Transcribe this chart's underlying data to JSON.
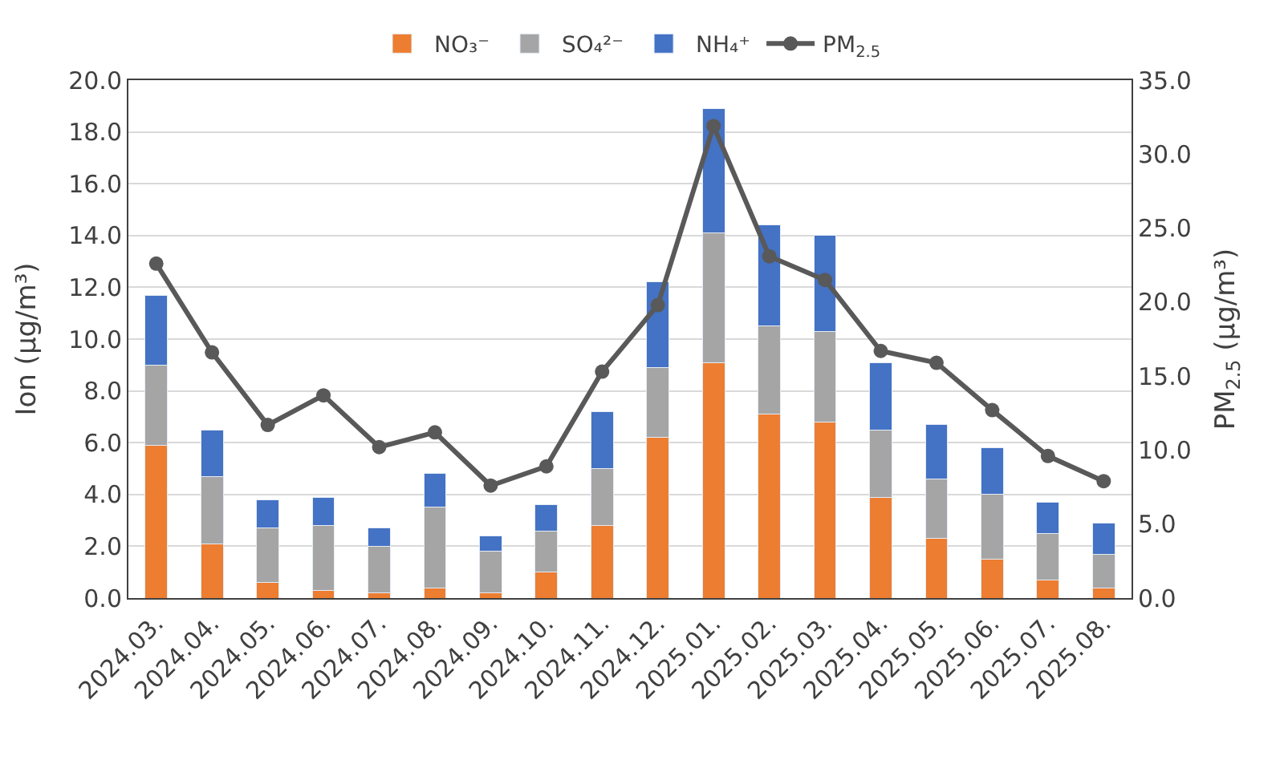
{
  "chart_data": {
    "type": "bar",
    "stacked": true,
    "xlabel": null,
    "ylabel": "Ion (μg/m³)",
    "y2label": "PM$_{2.5}$ (μg/m³)",
    "categories": [
      "2024.03.",
      "2024.04.",
      "2024.05.",
      "2024.06.",
      "2024.07.",
      "2024.08.",
      "2024.09.",
      "2024.10.",
      "2024.11.",
      "2024.12.",
      "2025.01.",
      "2025.02.",
      "2025.03.",
      "2025.04.",
      "2025.05.",
      "2025.06.",
      "2025.07.",
      "2025.08."
    ],
    "series": [
      {
        "name": "NO₃⁻",
        "color": "#ed7d31",
        "values": [
          5.9,
          2.1,
          0.6,
          0.3,
          0.2,
          0.4,
          0.2,
          1.0,
          2.8,
          6.2,
          9.1,
          7.1,
          6.8,
          3.9,
          2.3,
          1.5,
          0.7,
          0.4
        ]
      },
      {
        "name": "SO₄²⁻",
        "color": "#a5a5a5",
        "values": [
          3.1,
          2.6,
          2.1,
          2.5,
          1.8,
          3.1,
          1.6,
          1.6,
          2.2,
          2.7,
          5.0,
          3.4,
          3.5,
          2.6,
          2.3,
          2.5,
          1.8,
          1.3
        ]
      },
      {
        "name": "NH₄⁺",
        "color": "#4472c4",
        "values": [
          2.7,
          1.8,
          1.1,
          1.1,
          0.7,
          1.3,
          0.6,
          1.0,
          2.2,
          3.3,
          4.8,
          3.9,
          3.7,
          2.6,
          2.1,
          1.8,
          1.2,
          1.2
        ]
      },
      {
        "name": "PM$_{2.5}$",
        "color": "#595959",
        "type": "line",
        "axis": "y2",
        "marker": "circle",
        "line_style": "solid",
        "values": [
          22.6,
          16.6,
          11.7,
          13.7,
          10.2,
          11.2,
          7.6,
          8.9,
          15.3,
          19.8,
          31.9,
          23.1,
          21.5,
          16.7,
          15.9,
          12.7,
          9.6,
          7.9
        ]
      }
    ],
    "ylim": [
      0,
      20
    ],
    "yticks": [
      {
        "value": 0,
        "label": "0.0"
      },
      {
        "value": 2,
        "label": "2.0"
      },
      {
        "value": 4,
        "label": "4.0"
      },
      {
        "value": 6,
        "label": "6.0"
      },
      {
        "value": 8,
        "label": "8.0"
      },
      {
        "value": 10,
        "label": "10.0"
      },
      {
        "value": 12,
        "label": "12.0"
      },
      {
        "value": 14,
        "label": "14.0"
      },
      {
        "value": 16,
        "label": "16.0"
      },
      {
        "value": 18,
        "label": "18.0"
      },
      {
        "value": 20,
        "label": "20.0"
      }
    ],
    "y2lim": [
      0,
      35
    ],
    "y2ticks": [
      {
        "value": 0,
        "label": "0.0"
      },
      {
        "value": 5,
        "label": "5.0"
      },
      {
        "value": 10,
        "label": "10.0"
      },
      {
        "value": 15,
        "label": "15.0"
      },
      {
        "value": 20,
        "label": "20.0"
      },
      {
        "value": 25,
        "label": "25.0"
      },
      {
        "value": 30,
        "label": "30.0"
      },
      {
        "value": 35,
        "label": "35.0"
      }
    ],
    "grid": "y",
    "legend": "top"
  }
}
